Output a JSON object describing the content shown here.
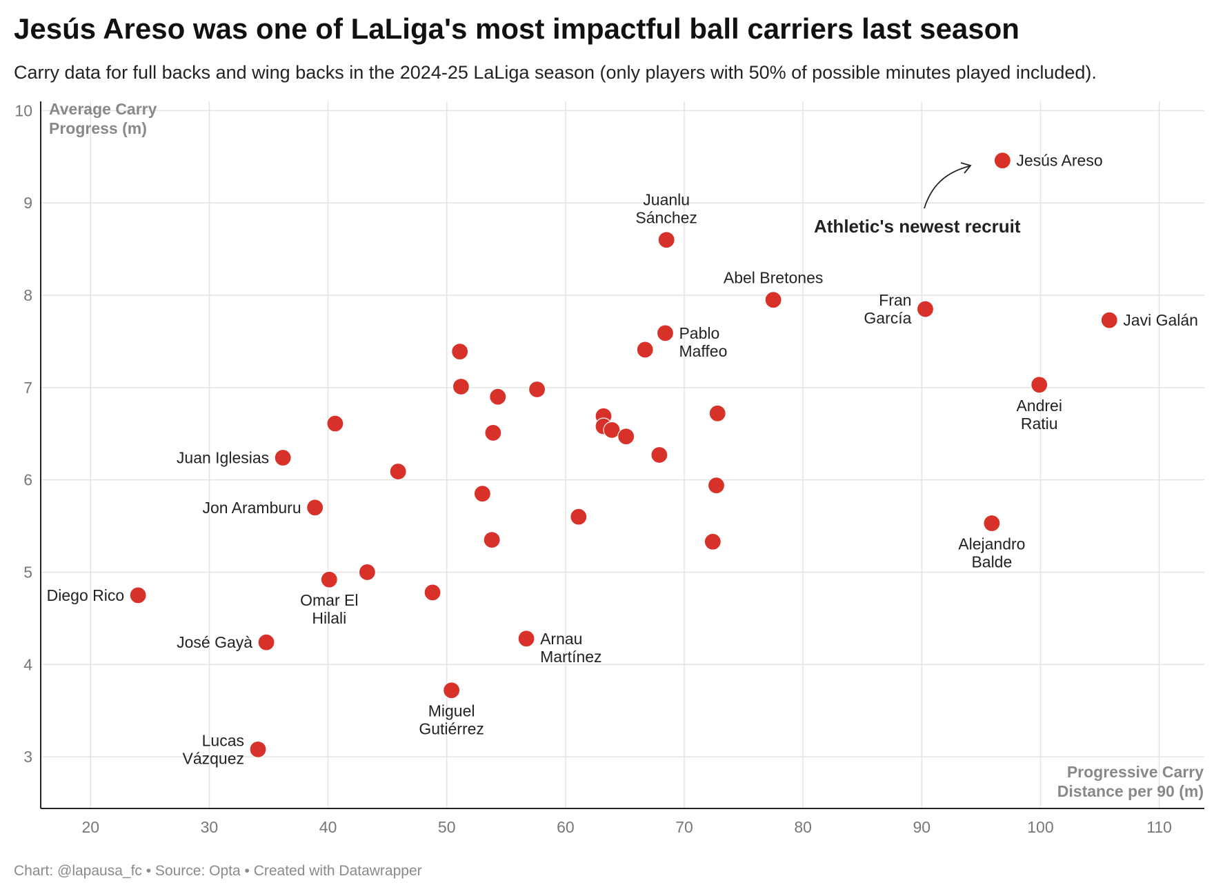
{
  "header": {
    "title": "Jesús Areso was one of LaLiga's most impactful ball carriers last season",
    "subtitle": "Carry data for full backs and wing backs in the 2024-25 LaLiga season (only players with 50% of possible minutes played included)."
  },
  "footer": {
    "credit": "Chart: @lapausa_fc • Source: Opta • Created with Datawrapper"
  },
  "annotation": {
    "text": "Athletic's newest recruit"
  },
  "chart_data": {
    "type": "scatter",
    "title": "Jesús Areso was one of LaLiga's most impactful ball carriers last season",
    "xlabel": "Progressive Carry Distance per 90 (m)",
    "xlabel_lines": [
      "Progressive Carry",
      "Distance per 90 (m)"
    ],
    "ylabel": "Average Carry Progress (m)",
    "ylabel_lines": [
      "Average Carry",
      "Progress (m)"
    ],
    "xlim": [
      15.8,
      113.8
    ],
    "ylim": [
      2.44,
      10.1
    ],
    "xticks": [
      20,
      30,
      40,
      50,
      60,
      70,
      80,
      90,
      100,
      110
    ],
    "yticks": [
      3,
      4,
      5,
      6,
      7,
      8,
      9,
      10
    ],
    "grid": true,
    "point_color": "#d8312a",
    "points": [
      {
        "x": 96.8,
        "y": 9.46,
        "label": [
          "Jesús Areso"
        ],
        "anchor": "right"
      },
      {
        "x": 68.5,
        "y": 8.6,
        "label": [
          "Juanlu",
          "Sánchez"
        ],
        "anchor": "above"
      },
      {
        "x": 77.5,
        "y": 7.95,
        "label": [
          "Abel Bretones"
        ],
        "anchor": "above"
      },
      {
        "x": 90.3,
        "y": 7.85,
        "label": [
          "Fran",
          "García"
        ],
        "anchor": "left"
      },
      {
        "x": 105.8,
        "y": 7.73,
        "label": [
          "Javi Galán"
        ],
        "anchor": "right"
      },
      {
        "x": 68.4,
        "y": 7.59,
        "label": [
          "Pablo",
          "Maffeo"
        ],
        "anchor": "right"
      },
      {
        "x": 99.9,
        "y": 7.03,
        "label": [
          "Andrei",
          "Ratiu"
        ],
        "anchor": "below"
      },
      {
        "x": 36.2,
        "y": 6.24,
        "label": [
          "Juan Iglesias"
        ],
        "anchor": "left"
      },
      {
        "x": 38.9,
        "y": 5.7,
        "label": [
          "Jon Aramburu"
        ],
        "anchor": "left"
      },
      {
        "x": 95.9,
        "y": 5.53,
        "label": [
          "Alejandro",
          "Balde"
        ],
        "anchor": "below"
      },
      {
        "x": 40.1,
        "y": 4.92,
        "label": [
          "Omar El",
          "Hilali"
        ],
        "anchor": "below"
      },
      {
        "x": 24.0,
        "y": 4.75,
        "label": [
          "Diego Rico"
        ],
        "anchor": "left"
      },
      {
        "x": 56.7,
        "y": 4.28,
        "label": [
          "Arnau",
          "Martínez"
        ],
        "anchor": "right"
      },
      {
        "x": 34.8,
        "y": 4.24,
        "label": [
          "José Gayà"
        ],
        "anchor": "left"
      },
      {
        "x": 50.4,
        "y": 3.72,
        "label": [
          "Miguel",
          "Gutiérrez"
        ],
        "anchor": "below"
      },
      {
        "x": 34.1,
        "y": 3.08,
        "label": [
          "Lucas",
          "Vázquez"
        ],
        "anchor": "left"
      },
      {
        "x": 66.7,
        "y": 7.41
      },
      {
        "x": 51.1,
        "y": 7.39
      },
      {
        "x": 51.2,
        "y": 7.01
      },
      {
        "x": 57.6,
        "y": 6.98
      },
      {
        "x": 54.3,
        "y": 6.9
      },
      {
        "x": 72.8,
        "y": 6.72
      },
      {
        "x": 63.2,
        "y": 6.69
      },
      {
        "x": 40.6,
        "y": 6.61
      },
      {
        "x": 63.2,
        "y": 6.58
      },
      {
        "x": 63.9,
        "y": 6.54
      },
      {
        "x": 53.9,
        "y": 6.51
      },
      {
        "x": 65.1,
        "y": 6.47
      },
      {
        "x": 67.9,
        "y": 6.27
      },
      {
        "x": 45.9,
        "y": 6.09
      },
      {
        "x": 72.7,
        "y": 5.94
      },
      {
        "x": 53.0,
        "y": 5.85
      },
      {
        "x": 61.1,
        "y": 5.6
      },
      {
        "x": 53.8,
        "y": 5.35
      },
      {
        "x": 72.4,
        "y": 5.33
      },
      {
        "x": 43.3,
        "y": 5.0
      },
      {
        "x": 48.8,
        "y": 4.78
      }
    ]
  }
}
